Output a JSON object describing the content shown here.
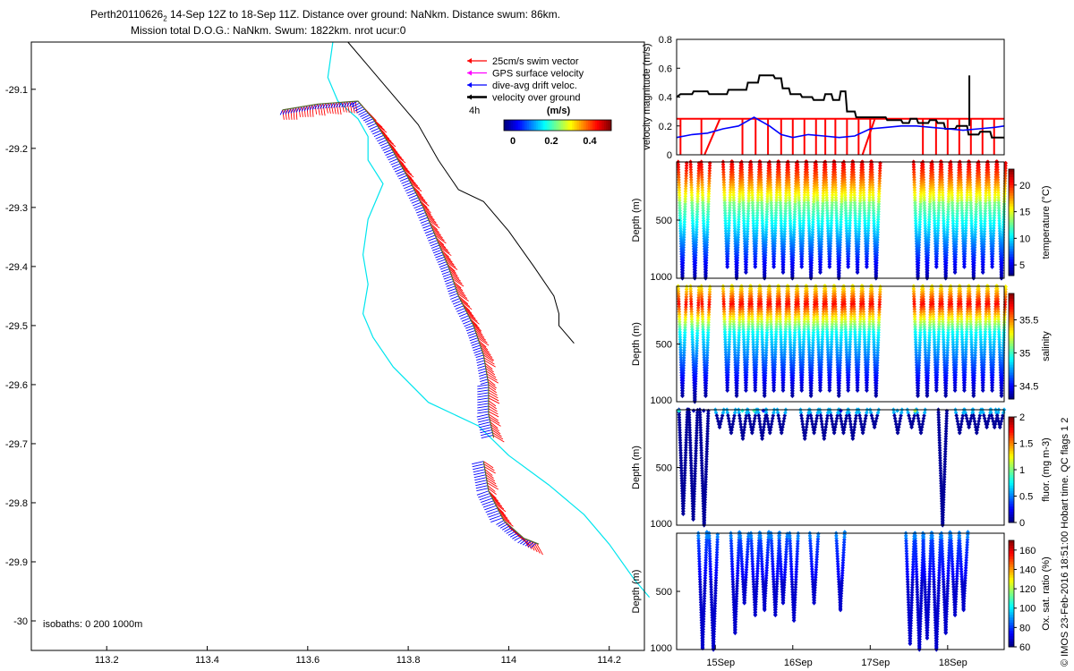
{
  "title": {
    "line1_main": "Perth20110626",
    "line1_sub": "2",
    "line1_rest": " 14-Sep 12Z to 18-Sep 11Z. Distance over ground: NaNkm. Distance swum: 86km.",
    "line2": "Mission total D.O.G.: NaNkm. Swum: 1822km. nrot ucur:0"
  },
  "copyright": "© IMOS 23-Feb-2016 18:51:00 Hobart time. QC flags 1  2",
  "colors": {
    "swim": "#ff0000",
    "gps": "#ff00ff",
    "drift": "#0000ff",
    "ground": "#000000",
    "track_coast": "#000000",
    "track_cyan": "#00e5ee",
    "redline": "#ff0000"
  },
  "chart_data": [
    {
      "type": "scatter",
      "name": "map",
      "xlim": [
        113.05,
        114.27
      ],
      "ylim": [
        -30.05,
        -29.02
      ],
      "xticks": [
        "113.2",
        "113.4",
        "113.6",
        "113.8",
        "114",
        "114.2"
      ],
      "xtick_values": [
        113.2,
        113.4,
        113.6,
        113.8,
        114.0,
        114.2
      ],
      "yticks": [
        "-29.1",
        "-29.2",
        "-29.3",
        "-29.4",
        "-29.5",
        "-29.6",
        "-29.7",
        "-29.8",
        "-29.9",
        "-30"
      ],
      "ytick_values": [
        -29.1,
        -29.2,
        -29.3,
        -29.4,
        -29.5,
        -29.6,
        -29.7,
        -29.8,
        -29.9,
        -30.0
      ],
      "legend": {
        "items": [
          "25cm/s swim vector",
          "GPS surface velocity",
          "dive-avg drift veloc.",
          "velocity over ground"
        ],
        "time_label": "4h",
        "colorbar_label": "(m/s)",
        "colorbar_ticks": [
          "0",
          "0.2",
          "0.4"
        ],
        "placement": "top-right"
      },
      "isobaths_label": "isobaths: 0   200  1000m",
      "coast_line": [
        [
          113.68,
          -29.02
        ],
        [
          113.72,
          -29.06
        ],
        [
          113.76,
          -29.1
        ],
        [
          113.82,
          -29.16
        ],
        [
          113.86,
          -29.22
        ],
        [
          113.9,
          -29.27
        ],
        [
          113.95,
          -29.29
        ],
        [
          114.0,
          -29.34
        ],
        [
          114.05,
          -29.4
        ],
        [
          114.09,
          -29.45
        ],
        [
          114.1,
          -29.48
        ],
        [
          114.1,
          -29.5
        ],
        [
          114.13,
          -29.53
        ]
      ],
      "cyan_line": [
        [
          113.65,
          -29.02
        ],
        [
          113.64,
          -29.08
        ],
        [
          113.66,
          -29.12
        ],
        [
          113.7,
          -29.15
        ],
        [
          113.72,
          -29.18
        ],
        [
          113.72,
          -29.22
        ],
        [
          113.75,
          -29.26
        ],
        [
          113.72,
          -29.32
        ],
        [
          113.71,
          -29.38
        ],
        [
          113.72,
          -29.43
        ],
        [
          113.71,
          -29.48
        ],
        [
          113.73,
          -29.52
        ],
        [
          113.77,
          -29.57
        ],
        [
          113.84,
          -29.63
        ],
        [
          113.94,
          -29.67
        ],
        [
          114.0,
          -29.72
        ],
        [
          114.08,
          -29.77
        ],
        [
          114.15,
          -29.82
        ],
        [
          114.2,
          -29.87
        ],
        [
          114.25,
          -29.93
        ],
        [
          114.28,
          -29.96
        ]
      ],
      "glider_track": [
        [
          113.55,
          -29.135
        ],
        [
          113.62,
          -29.125
        ],
        [
          113.7,
          -29.12
        ],
        [
          113.73,
          -29.15
        ],
        [
          113.76,
          -29.19
        ],
        [
          113.8,
          -29.25
        ],
        [
          113.83,
          -29.3
        ],
        [
          113.86,
          -29.36
        ],
        [
          113.88,
          -29.4
        ],
        [
          113.9,
          -29.45
        ],
        [
          113.93,
          -29.5
        ],
        [
          113.95,
          -29.55
        ],
        [
          113.96,
          -29.6
        ],
        [
          113.96,
          -29.65
        ],
        [
          113.97,
          -29.69
        ],
        [
          113.95,
          -29.73
        ],
        [
          113.96,
          -29.78
        ],
        [
          113.99,
          -29.83
        ],
        [
          114.03,
          -29.86
        ],
        [
          114.06,
          -29.87
        ]
      ]
    },
    {
      "type": "line",
      "name": "velocity",
      "ylabel": "velocity magnitude (m/s)",
      "xlim": [
        14.5,
        18.73
      ],
      "ylim": [
        0,
        0.8
      ],
      "yticks": [
        "0",
        "0.2",
        "0.4",
        "0.6",
        "0.8"
      ],
      "ytick_values": [
        0,
        0.2,
        0.4,
        0.6,
        0.8
      ],
      "series": [
        {
          "color": "#000000",
          "x": [
            14.5,
            14.55,
            14.7,
            14.72,
            14.9,
            14.92,
            15.15,
            15.17,
            15.4,
            15.42,
            15.55,
            15.57,
            15.75,
            15.77,
            15.85,
            15.87,
            15.95,
            15.97,
            16.1,
            16.12,
            16.25,
            16.27,
            16.4,
            16.42,
            16.5,
            16.52,
            16.6,
            16.62,
            16.68,
            16.7,
            16.8,
            16.82,
            17.2,
            17.22,
            17.4,
            17.42,
            17.5,
            17.52,
            17.6,
            17.62,
            17.75,
            17.77,
            17.85,
            17.87,
            17.95,
            17.97,
            18.1,
            18.12,
            18.25,
            18.27,
            18.4,
            18.42,
            18.55,
            18.57,
            18.73
          ],
          "y": [
            0.4,
            0.42,
            0.42,
            0.44,
            0.44,
            0.42,
            0.42,
            0.45,
            0.45,
            0.5,
            0.5,
            0.55,
            0.55,
            0.53,
            0.53,
            0.46,
            0.46,
            0.42,
            0.42,
            0.4,
            0.4,
            0.38,
            0.38,
            0.42,
            0.42,
            0.38,
            0.38,
            0.44,
            0.44,
            0.3,
            0.3,
            0.26,
            0.26,
            0.24,
            0.24,
            0.22,
            0.22,
            0.25,
            0.25,
            0.22,
            0.22,
            0.24,
            0.24,
            0.22,
            0.22,
            0.18,
            0.18,
            0.2,
            0.2,
            0.14,
            0.14,
            0.16,
            0.16,
            0.12,
            0.12
          ]
        },
        {
          "color": "#0000ff",
          "x": [
            14.5,
            14.7,
            14.9,
            15.1,
            15.3,
            15.5,
            15.7,
            15.85,
            16.0,
            16.2,
            16.4,
            16.6,
            16.8,
            17.0,
            17.2,
            17.4,
            17.6,
            17.8,
            18.0,
            18.2,
            18.4,
            18.6,
            18.73
          ],
          "y": [
            0.12,
            0.14,
            0.15,
            0.18,
            0.2,
            0.26,
            0.2,
            0.14,
            0.12,
            0.14,
            0.13,
            0.12,
            0.13,
            0.18,
            0.19,
            0.2,
            0.2,
            0.19,
            0.18,
            0.17,
            0.18,
            0.19,
            0.2
          ]
        }
      ],
      "red_segments": {
        "level": 0.25,
        "dive_times": [
          14.55,
          14.82,
          15.35,
          15.52,
          15.68,
          15.85,
          16.0,
          16.15,
          16.3,
          16.42,
          16.55,
          16.7,
          16.85,
          17.0,
          17.68,
          17.85,
          18.0,
          18.15,
          18.3,
          18.45,
          18.6
        ],
        "ramps": [
          [
            14.86,
            15.06
          ],
          [
            16.9,
            17.06
          ]
        ]
      },
      "extra_black_spikes": [
        [
          18.25,
          0.2
        ],
        [
          18.28,
          0.55
        ]
      ]
    },
    {
      "type": "scatter",
      "name": "temperature",
      "ylabel": "Depth (m)",
      "colorbar_label": "temperature (°C)",
      "colorbar_ticks": [
        "5",
        "10",
        "15",
        "20"
      ],
      "colorbar_values": [
        5,
        10,
        15,
        20
      ],
      "clim": [
        3,
        23
      ],
      "ylim": [
        0,
        1000
      ],
      "yticks": [
        "500",
        "1000"
      ],
      "ytick_values": [
        500,
        1000
      ],
      "colormap": "jet",
      "profiles": {
        "starts": [
          14.52,
          14.68,
          14.82,
          15.1,
          15.22,
          15.34,
          15.46,
          15.58,
          15.7,
          15.82,
          15.94,
          16.06,
          16.18,
          16.3,
          16.42,
          16.54,
          16.66,
          16.78,
          16.9,
          17.02,
          17.56,
          17.68,
          17.8,
          17.92,
          18.04,
          18.16,
          18.28,
          18.4,
          18.52,
          18.64
        ],
        "max_depth": [
          1000,
          1000,
          1000,
          900,
          1000,
          950,
          900,
          1000,
          900,
          950,
          1000,
          900,
          1000,
          950,
          900,
          1000,
          900,
          950,
          900,
          1000,
          1000,
          1000,
          900,
          1000,
          950,
          900,
          1000,
          950,
          900,
          1000
        ],
        "surface_value": 22,
        "bottom_value": 3
      }
    },
    {
      "type": "scatter",
      "name": "salinity",
      "ylabel": "Depth (m)",
      "colorbar_label": "salinity",
      "colorbar_ticks": [
        "34.5",
        "35",
        "35.5"
      ],
      "colorbar_values": [
        34.5,
        35,
        35.5
      ],
      "clim": [
        34.3,
        35.9
      ],
      "ylim": [
        0,
        1000
      ],
      "yticks": [
        "500",
        "1000"
      ],
      "ytick_values": [
        500,
        1000
      ],
      "colormap": "jet",
      "profiles": {
        "starts": [
          14.52,
          14.68,
          14.82,
          15.1,
          15.22,
          15.34,
          15.46,
          15.58,
          15.7,
          15.82,
          15.94,
          16.06,
          16.18,
          16.3,
          16.42,
          16.54,
          16.66,
          16.78,
          16.9,
          17.02,
          17.56,
          17.68,
          17.8,
          17.92,
          18.04,
          18.16,
          18.28,
          18.4,
          18.52,
          18.64
        ],
        "max_depth": [
          950,
          1000,
          950,
          900,
          950,
          900,
          900,
          950,
          900,
          900,
          950,
          900,
          950,
          900,
          900,
          950,
          900,
          900,
          900,
          950,
          950,
          950,
          900,
          950,
          900,
          900,
          950,
          900,
          900,
          950
        ],
        "profile_shape": "35.3 at surface, 35.7 near 150 m, 34.4 at bottom"
      }
    },
    {
      "type": "scatter",
      "name": "fluorescence",
      "ylabel": "Depth (m)",
      "colorbar_label": "fluor. (mg m-3)",
      "colorbar_ticks": [
        "0",
        "0.5",
        "1",
        "1.5",
        "2"
      ],
      "colorbar_values": [
        0,
        0.5,
        1,
        1.5,
        2
      ],
      "clim": [
        0,
        2
      ],
      "ylim": [
        0,
        1000
      ],
      "yticks": [
        "500",
        "1000"
      ],
      "ytick_values": [
        500,
        1000
      ],
      "colormap": "jet",
      "deep_profiles": [
        [
          14.53,
          900
        ],
        [
          14.66,
          950
        ],
        [
          14.8,
          1000
        ],
        [
          17.88,
          1000
        ]
      ],
      "shallow_profiles": [
        [
          15.0,
          150
        ],
        [
          15.15,
          200
        ],
        [
          15.3,
          250
        ],
        [
          15.42,
          200
        ],
        [
          15.55,
          250
        ],
        [
          15.65,
          200
        ],
        [
          15.8,
          200
        ],
        [
          16.1,
          250
        ],
        [
          16.22,
          200
        ],
        [
          16.35,
          250
        ],
        [
          16.48,
          200
        ],
        [
          16.6,
          200
        ],
        [
          16.72,
          250
        ],
        [
          16.85,
          200
        ],
        [
          17.0,
          150
        ],
        [
          17.3,
          200
        ],
        [
          17.48,
          150
        ],
        [
          17.6,
          200
        ],
        [
          18.1,
          200
        ],
        [
          18.22,
          150
        ],
        [
          18.32,
          200
        ],
        [
          18.45,
          150
        ],
        [
          18.55,
          150
        ],
        [
          18.62,
          150
        ]
      ],
      "surface_dots": [
        [
          14.53,
          0.8
        ],
        [
          14.72,
          0.1
        ],
        [
          14.85,
          0.1
        ],
        [
          15.35,
          0.8
        ],
        [
          15.5,
          0.9
        ],
        [
          15.62,
          0.3
        ],
        [
          16.62,
          0.2
        ],
        [
          17.35,
          0.6
        ],
        [
          17.58,
          1.1
        ]
      ]
    },
    {
      "type": "scatter",
      "name": "oxygen",
      "ylabel": "Depth (m)",
      "colorbar_label": "Ox. sat. ratio (%)",
      "colorbar_ticks": [
        "60",
        "80",
        "100",
        "120",
        "140",
        "160"
      ],
      "colorbar_values": [
        60,
        80,
        100,
        120,
        140,
        160
      ],
      "clim": [
        60,
        170
      ],
      "ylim": [
        0,
        1000
      ],
      "yticks": [
        "500",
        "1000"
      ],
      "ytick_values": [
        500,
        1000
      ],
      "colormap": "jet",
      "xticks": [
        "15Sep",
        "16Sep",
        "17Sep",
        "18Sep"
      ],
      "xtick_values": [
        15,
        16,
        17,
        18
      ],
      "profiles": [
        [
          14.78,
          980
        ],
        [
          14.92,
          1000
        ],
        [
          15.2,
          850
        ],
        [
          15.32,
          600
        ],
        [
          15.46,
          700
        ],
        [
          15.58,
          650
        ],
        [
          15.72,
          700
        ],
        [
          15.82,
          600
        ],
        [
          15.96,
          750
        ],
        [
          16.22,
          600
        ],
        [
          16.56,
          650
        ],
        [
          17.46,
          950
        ],
        [
          17.58,
          1000
        ],
        [
          17.68,
          900
        ],
        [
          17.8,
          1000
        ],
        [
          17.92,
          850
        ],
        [
          18.04,
          700
        ],
        [
          18.15,
          650
        ]
      ]
    }
  ]
}
